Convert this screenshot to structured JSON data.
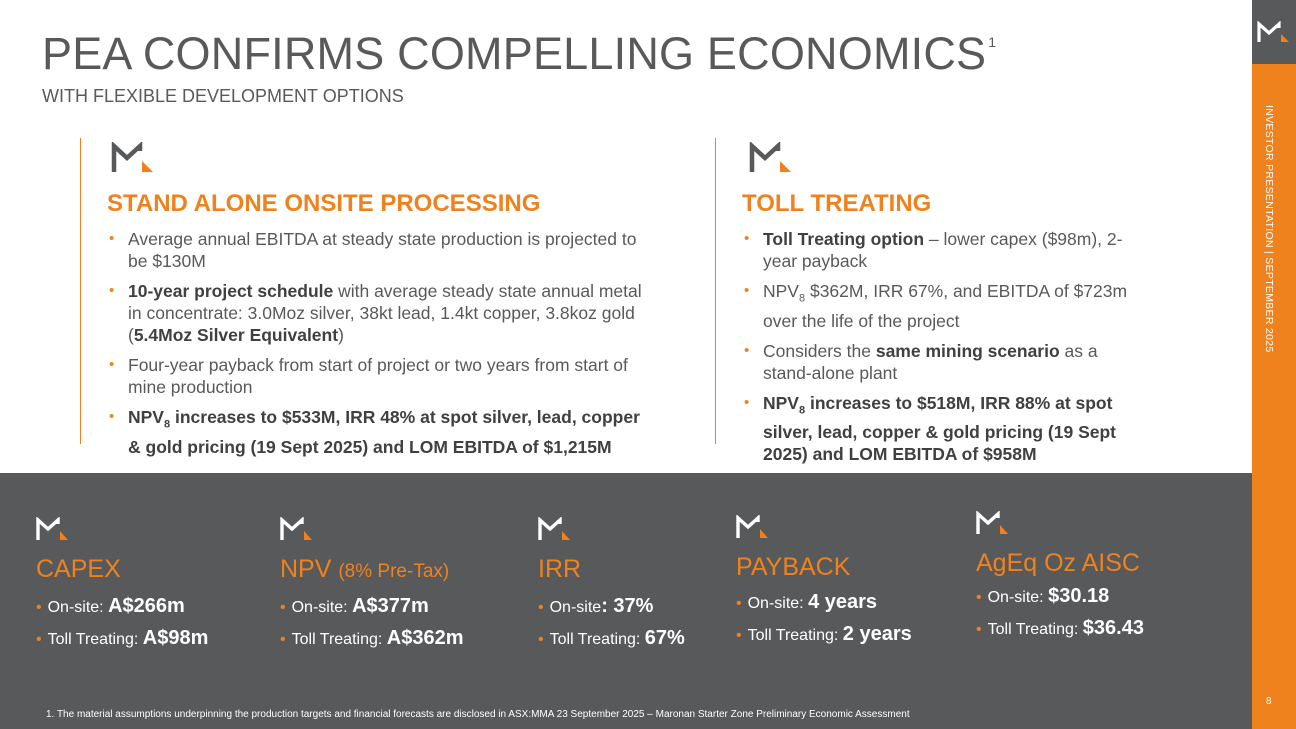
{
  "title": "PEA CONFIRMS COMPELLING ECONOMICS",
  "title_footnote_mark": "1",
  "subtitle": "WITH FLEXIBLE DEVELOPMENT OPTIONS",
  "sidebar": {
    "label": "INVESTOR PRESENTATION | SEPTEMBER 2025",
    "page_number": "8"
  },
  "colors": {
    "accent": "#F0821E",
    "band": "#58595b",
    "text": "#595959"
  },
  "left": {
    "heading": "STAND ALONE ONSITE PROCESSING",
    "bullets": {
      "b1": "Average annual EBITDA at steady state production is projected to be $130M",
      "b2_bold": "10-year project schedule",
      "b2_rest": " with average steady state annual metal in concentrate: 3.0Moz silver, 38kt lead, 1.4kt copper, 3.8koz gold (",
      "b2_bold2": "5.4Moz Silver Equivalent",
      "b2_end": ")",
      "b3": "Four-year payback from start of project or two years from start of mine production",
      "b4_npv": "NPV",
      "b4_sub": "8",
      "b4_rest": " increases to $533M, IRR 48% at spot silver, lead, copper & gold pricing (19 Sept 2025) and LOM EBITDA of $1,215M"
    }
  },
  "right": {
    "heading": "TOLL TREATING",
    "bullets": {
      "b1_bold": "Toll Treating option",
      "b1_rest": " – lower capex ($98m), 2-year payback",
      "b2_npv": "NPV",
      "b2_sub": "8",
      "b2_rest": " $362M, IRR 67%, and EBITDA of $723m over the life of the project",
      "b3_pre": "Considers the ",
      "b3_bold": "same mining scenario",
      "b3_rest": " as a stand-alone plant",
      "b4_npv": "NPV",
      "b4_sub": "8",
      "b4_rest": " increases to $518M, IRR 88% at spot silver, lead, copper & gold pricing (19 Sept 2025) and LOM EBITDA of $958M"
    }
  },
  "metrics": {
    "capex": {
      "title": "CAPEX",
      "title_small": "",
      "onsite_label": "On-site: ",
      "onsite_value": "A$266m",
      "toll_label": "Toll Treating: ",
      "toll_value": "A$98m"
    },
    "npv": {
      "title": "NPV ",
      "title_small": "(8% Pre-Tax)",
      "onsite_label": "On-site: ",
      "onsite_value": "A$377m",
      "toll_label": "Toll Treating: ",
      "toll_value": "A$362m"
    },
    "irr": {
      "title": "IRR",
      "title_small": "",
      "onsite_label": "On-site",
      "onsite_value": ": 37%",
      "toll_label": "Toll Treating: ",
      "toll_value": "67%"
    },
    "payback": {
      "title": "PAYBACK",
      "title_small": "",
      "onsite_label": "On-site: ",
      "onsite_value": "4 years",
      "toll_label": "Toll Treating: ",
      "toll_value": "2 years"
    },
    "aisc": {
      "title": "AgEq Oz AISC",
      "title_small": "",
      "onsite_label": "On-site: ",
      "onsite_value": "$30.18",
      "toll_label": "Toll Treating: ",
      "toll_value": "$36.43"
    }
  },
  "footnote": "1. The material assumptions underpinning the production targets and financial forecasts are disclosed in ASX:MMA 23 September 2025 – Maronan Starter Zone Preliminary Economic Assessment",
  "icons": {
    "logo": "m-logo-icon"
  }
}
